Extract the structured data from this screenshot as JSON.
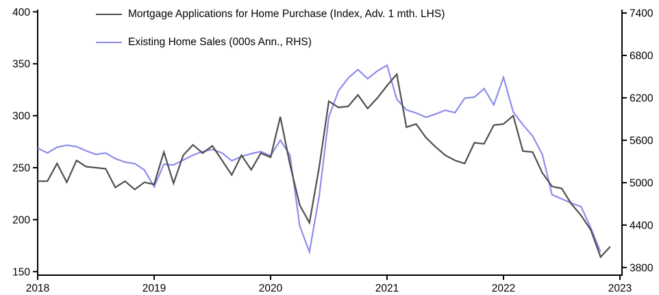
{
  "chart_data": {
    "type": "line",
    "title": "",
    "x_axis": {
      "start": "2018-01",
      "frequency": "monthly",
      "tick_labels": [
        "2018",
        "2019",
        "2020",
        "2021",
        "2022",
        "2023"
      ]
    },
    "left_axis": {
      "label": "",
      "range": [
        150,
        400
      ],
      "ticks": [
        150,
        200,
        250,
        300,
        350,
        400
      ]
    },
    "right_axis": {
      "label": "",
      "range": [
        3800,
        7400
      ],
      "ticks": [
        3800,
        4400,
        5000,
        5600,
        6200,
        6800,
        7400
      ]
    },
    "grid": false,
    "legend_position": "top-left-inside",
    "series": [
      {
        "key": "mortgage-applications",
        "name": "Mortgage Applications for Home Purchase (Index, Adv. 1 mth. LHS)",
        "axis": "left",
        "color": "#4d4d4d",
        "values": [
          237,
          237,
          254,
          236,
          257,
          251,
          250,
          249,
          231,
          237,
          229,
          236,
          234,
          265,
          235,
          262,
          272,
          264,
          271,
          257,
          243,
          262,
          248,
          264,
          260,
          299,
          253,
          214,
          197,
          250,
          314,
          308,
          309,
          320,
          307,
          317,
          329,
          340,
          289,
          292,
          279,
          270,
          262,
          257,
          254,
          274,
          273,
          291,
          292,
          300,
          266,
          265,
          245,
          232,
          230,
          215,
          204,
          190,
          164,
          174
        ]
      },
      {
        "key": "existing-home-sales",
        "name": "Existing Home Sales (000s Ann., RHS)",
        "axis": "right",
        "color": "#8d8dea",
        "values": [
          5490,
          5420,
          5500,
          5530,
          5510,
          5450,
          5400,
          5420,
          5340,
          5290,
          5270,
          5180,
          4940,
          5260,
          5250,
          5320,
          5390,
          5440,
          5470,
          5420,
          5310,
          5370,
          5410,
          5440,
          5380,
          5600,
          5390,
          4390,
          4020,
          4800,
          5930,
          6300,
          6480,
          6600,
          6470,
          6580,
          6660,
          6180,
          6030,
          5985,
          5925,
          5970,
          6025,
          5990,
          6195,
          6210,
          6330,
          6100,
          6490,
          6000,
          5820,
          5660,
          5400,
          4830,
          4770,
          4710,
          4660,
          4360,
          4020,
          null
        ]
      }
    ]
  }
}
